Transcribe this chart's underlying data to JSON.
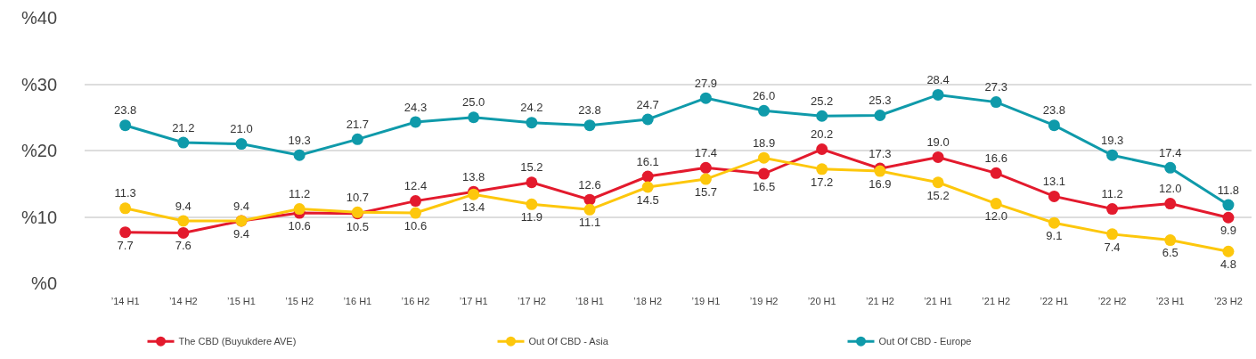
{
  "chart_data": {
    "type": "line",
    "categories": [
      "’14 H1",
      "’14 H2",
      "’15 H1",
      "’15 H2",
      "’16 H1",
      "’16 H2",
      "’17 H1",
      "’17 H2",
      "’18 H1",
      "’18 H2",
      "’19 H1",
      "’19 H2",
      "’20 H1",
      "’21 H2",
      "’21 H1",
      "’21 H2",
      "’22 H1",
      "’22 H2",
      "’23 H1",
      "’23 H2"
    ],
    "series": [
      {
        "name": "The CBD (Buyukdere AVE)",
        "color": "#e31a2d",
        "values": [
          7.7,
          7.6,
          9.4,
          10.6,
          10.5,
          12.4,
          13.8,
          15.2,
          12.6,
          16.1,
          17.4,
          16.5,
          20.2,
          17.3,
          19.0,
          16.6,
          13.1,
          11.2,
          12.0,
          9.9
        ],
        "value_labels": [
          "7.7",
          "7.6",
          "9.4",
          "10.6",
          "10.5",
          "12.4",
          "13.8",
          "15.2",
          "12.6",
          "16.1",
          "17.4",
          "16.5",
          "20.2",
          "17.3",
          "19.0",
          "16.6",
          "13.1",
          "11.2",
          "12.0",
          "9.9"
        ]
      },
      {
        "name": "Out Of CBD - Asia",
        "color": "#fdc70c",
        "values": [
          11.3,
          9.4,
          9.4,
          11.2,
          10.7,
          10.6,
          13.4,
          11.9,
          11.1,
          14.5,
          15.7,
          18.9,
          17.2,
          16.9,
          15.2,
          12.0,
          9.1,
          7.4,
          6.5,
          4.8
        ],
        "value_labels": [
          "11.3",
          "9.4",
          "9.4",
          "11.2",
          "10.7",
          "10.6",
          "13.4",
          "11.9",
          "11.1",
          "14.5",
          "15.7",
          "18.9",
          "17.2",
          "16.9",
          "15.2",
          "12.0",
          "9.1",
          "7.4",
          "6.5",
          "4.8"
        ]
      },
      {
        "name": "Out Of CBD - Europe",
        "color": "#0f9aaa",
        "values": [
          23.8,
          21.2,
          21.0,
          19.3,
          21.7,
          24.3,
          25.0,
          24.2,
          23.8,
          24.7,
          27.9,
          26.0,
          25.2,
          25.3,
          28.4,
          27.3,
          23.8,
          19.3,
          17.4,
          11.8
        ],
        "value_labels": [
          "23.8",
          "21.2",
          "21.0",
          "19.3",
          "21.7",
          "24.3",
          "25.0",
          "24.2",
          "23.8",
          "24.7",
          "27.9",
          "26.0",
          "25.2",
          "25.3",
          "28.4",
          "27.3",
          "23.8",
          "19.3",
          "17.4",
          "11.8"
        ]
      }
    ],
    "ylim": [
      0,
      40
    ],
    "yticks": [
      {
        "value": 0,
        "label": "%0"
      },
      {
        "value": 10,
        "label": "%10"
      },
      {
        "value": 20,
        "label": "%20"
      },
      {
        "value": 30,
        "label": "%30"
      },
      {
        "value": 40,
        "label": "%40"
      }
    ],
    "grid": "y",
    "legend": "bottom",
    "marker": "circle",
    "line_style": "solid"
  }
}
